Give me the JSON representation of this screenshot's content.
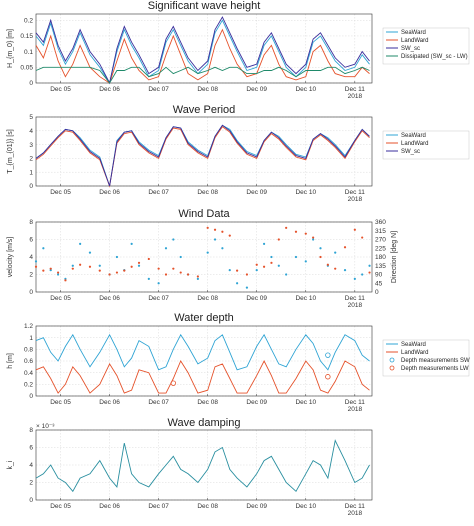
{
  "chart_data": [
    {
      "type": "line",
      "title": "Significant wave height",
      "ylabel": "H_{m_0} [m]",
      "ylim": [
        0,
        0.22
      ],
      "yticks": [
        0,
        0.05,
        0.1,
        0.15,
        0.2
      ],
      "xticks": [
        "Dec 05",
        "Dec 06",
        "Dec 07",
        "Dec 08",
        "Dec 09",
        "Dec 10",
        "Dec 11"
      ],
      "xyear": "2018",
      "legend": "right",
      "grid": true,
      "x": [
        4.5,
        4.65,
        4.8,
        4.95,
        5.1,
        5.25,
        5.4,
        5.6,
        5.8,
        6.0,
        6.15,
        6.3,
        6.45,
        6.6,
        6.8,
        7.0,
        7.15,
        7.3,
        7.45,
        7.6,
        7.8,
        8.0,
        8.15,
        8.3,
        8.45,
        8.6,
        8.8,
        9.0,
        9.15,
        9.3,
        9.45,
        9.6,
        9.8,
        10.0,
        10.15,
        10.3,
        10.45,
        10.6,
        10.8,
        11.0,
        11.15,
        11.3
      ],
      "series": [
        {
          "name": "SeaWard",
          "color": "#2fa4d4",
          "values": [
            0.15,
            0.12,
            0.19,
            0.11,
            0.06,
            0.1,
            0.16,
            0.09,
            0.05,
            0.0,
            0.1,
            0.17,
            0.12,
            0.08,
            0.02,
            0.04,
            0.13,
            0.17,
            0.12,
            0.07,
            0.03,
            0.06,
            0.16,
            0.2,
            0.15,
            0.1,
            0.04,
            0.05,
            0.12,
            0.15,
            0.1,
            0.05,
            0.02,
            0.05,
            0.13,
            0.15,
            0.11,
            0.07,
            0.04,
            0.05,
            0.09,
            0.06
          ]
        },
        {
          "name": "LandWard",
          "color": "#e5522b",
          "values": [
            0.12,
            0.08,
            0.15,
            0.07,
            0.02,
            0.06,
            0.12,
            0.05,
            0.02,
            0.0,
            0.07,
            0.14,
            0.08,
            0.04,
            0.01,
            0.02,
            0.09,
            0.15,
            0.09,
            0.03,
            0.01,
            0.03,
            0.12,
            0.17,
            0.11,
            0.06,
            0.02,
            0.03,
            0.09,
            0.12,
            0.06,
            0.02,
            0.01,
            0.02,
            0.1,
            0.12,
            0.07,
            0.03,
            0.02,
            0.02,
            0.05,
            0.03
          ]
        },
        {
          "name": "SW_sc",
          "color": "#3a2e9c",
          "values": [
            0.16,
            0.13,
            0.2,
            0.12,
            0.07,
            0.11,
            0.17,
            0.1,
            0.06,
            0.0,
            0.11,
            0.18,
            0.13,
            0.09,
            0.03,
            0.05,
            0.14,
            0.18,
            0.13,
            0.08,
            0.04,
            0.07,
            0.17,
            0.21,
            0.16,
            0.11,
            0.05,
            0.06,
            0.13,
            0.16,
            0.11,
            0.06,
            0.03,
            0.06,
            0.14,
            0.16,
            0.12,
            0.08,
            0.05,
            0.06,
            0.1,
            0.07
          ]
        },
        {
          "name": "Dissipated (SW_sc - LW)",
          "color": "#1f8a6a",
          "values": [
            0.04,
            0.05,
            0.05,
            0.05,
            0.05,
            0.05,
            0.05,
            0.05,
            0.04,
            0.0,
            0.04,
            0.04,
            0.05,
            0.05,
            0.02,
            0.03,
            0.05,
            0.03,
            0.04,
            0.05,
            0.03,
            0.04,
            0.05,
            0.04,
            0.05,
            0.05,
            0.03,
            0.03,
            0.04,
            0.04,
            0.05,
            0.04,
            0.02,
            0.04,
            0.04,
            0.04,
            0.05,
            0.05,
            0.03,
            0.04,
            0.05,
            0.04
          ]
        }
      ]
    },
    {
      "type": "line",
      "title": "Wave Period",
      "ylabel": "T_{m_{01}} [s]",
      "ylim": [
        0,
        5
      ],
      "yticks": [
        0,
        1,
        2,
        3,
        4,
        5
      ],
      "xticks": [
        "Dec 05",
        "Dec 06",
        "Dec 07",
        "Dec 08",
        "Dec 09",
        "Dec 10",
        "Dec 11"
      ],
      "xyear": "2018",
      "legend": "right",
      "grid": true,
      "x": [
        4.5,
        4.65,
        4.8,
        4.95,
        5.1,
        5.25,
        5.4,
        5.6,
        5.8,
        6.0,
        6.15,
        6.3,
        6.45,
        6.6,
        6.8,
        7.0,
        7.15,
        7.3,
        7.45,
        7.6,
        7.8,
        8.0,
        8.15,
        8.3,
        8.45,
        8.6,
        8.8,
        9.0,
        9.15,
        9.3,
        9.45,
        9.6,
        9.8,
        10.0,
        10.15,
        10.3,
        10.45,
        10.6,
        10.8,
        11.0,
        11.15,
        11.3
      ],
      "series": [
        {
          "name": "SeaWard",
          "color": "#2fa4d4",
          "values": [
            2.0,
            2.4,
            3.0,
            3.6,
            4.1,
            4.0,
            3.5,
            2.6,
            2.1,
            0.0,
            3.3,
            3.9,
            4.0,
            3.2,
            2.6,
            2.2,
            3.5,
            4.3,
            4.2,
            3.2,
            2.6,
            2.2,
            3.6,
            4.4,
            4.1,
            3.3,
            2.5,
            2.2,
            3.3,
            3.9,
            3.6,
            3.0,
            2.3,
            2.1,
            3.4,
            3.8,
            3.5,
            3.0,
            2.2,
            3.3,
            4.1,
            3.6
          ]
        },
        {
          "name": "LandWard",
          "color": "#e5522b",
          "values": [
            1.9,
            2.3,
            2.9,
            3.5,
            4.0,
            3.9,
            3.3,
            2.4,
            1.9,
            0.0,
            3.1,
            3.8,
            3.9,
            3.0,
            2.4,
            2.0,
            3.4,
            4.2,
            4.1,
            3.0,
            2.4,
            2.0,
            3.5,
            4.3,
            3.9,
            3.1,
            2.3,
            2.0,
            3.2,
            3.8,
            3.4,
            2.8,
            2.1,
            1.9,
            3.3,
            3.7,
            3.3,
            2.8,
            2.0,
            3.2,
            4.0,
            3.5
          ]
        },
        {
          "name": "SW_sc",
          "color": "#3a2e9c",
          "values": [
            2.0,
            2.4,
            3.0,
            3.6,
            4.1,
            4.0,
            3.4,
            2.5,
            2.0,
            0.0,
            3.2,
            3.9,
            4.0,
            3.1,
            2.5,
            2.1,
            3.5,
            4.3,
            4.2,
            3.1,
            2.5,
            2.1,
            3.6,
            4.4,
            4.0,
            3.2,
            2.4,
            2.1,
            3.3,
            3.9,
            3.5,
            2.9,
            2.2,
            2.0,
            3.4,
            3.8,
            3.4,
            2.9,
            2.1,
            3.3,
            4.1,
            3.6
          ]
        }
      ]
    },
    {
      "type": "scatter",
      "title": "Wind Data",
      "ylabel": "velocity [m/s]",
      "y2label": "Direction [deg N]",
      "ylim": [
        0,
        8
      ],
      "yticks": [
        0,
        2,
        4,
        6,
        8
      ],
      "y2lim": [
        0,
        360
      ],
      "y2ticks": [
        0,
        45,
        90,
        135,
        180,
        225,
        270,
        315,
        360
      ],
      "xticks": [
        "Dec 05",
        "Dec 06",
        "Dec 07",
        "Dec 08",
        "Dec 09",
        "Dec 10",
        "Dec 11"
      ],
      "xyear": "2018",
      "grid": true,
      "x": [
        4.5,
        4.65,
        4.8,
        4.95,
        5.1,
        5.25,
        5.4,
        5.6,
        5.8,
        6.0,
        6.15,
        6.3,
        6.45,
        6.6,
        6.8,
        7.0,
        7.15,
        7.3,
        7.45,
        7.6,
        7.8,
        8.0,
        8.15,
        8.3,
        8.45,
        8.6,
        8.8,
        9.0,
        9.15,
        9.3,
        9.45,
        9.6,
        9.8,
        10.0,
        10.15,
        10.3,
        10.45,
        10.6,
        10.8,
        11.0,
        11.15,
        11.3
      ],
      "series": [
        {
          "name": "velocity",
          "color": "#2fa4d4",
          "axis": "left",
          "values": [
            3.5,
            5.0,
            2.5,
            2.0,
            1.5,
            3.0,
            5.5,
            4.5,
            3.0,
            2.0,
            4.0,
            2.5,
            5.5,
            3.0,
            1.5,
            1.0,
            5.0,
            6.0,
            4.0,
            2.0,
            1.5,
            4.5,
            6.0,
            5.0,
            2.5,
            1.0,
            0.5,
            2.5,
            5.5,
            4.0,
            3.0,
            2.0,
            4.0,
            3.5,
            6.0,
            5.0,
            3.0,
            4.5,
            2.5,
            1.5,
            2.0,
            3.0
          ]
        },
        {
          "name": "direction",
          "color": "#e5522b",
          "axis": "right",
          "values": [
            130,
            110,
            120,
            100,
            60,
            120,
            140,
            130,
            110,
            90,
            100,
            110,
            130,
            150,
            170,
            120,
            90,
            120,
            100,
            90,
            80,
            330,
            320,
            310,
            290,
            110,
            90,
            140,
            130,
            150,
            270,
            330,
            310,
            300,
            280,
            180,
            140,
            120,
            230,
            320,
            280,
            100
          ]
        }
      ]
    },
    {
      "type": "line",
      "title": "Water depth",
      "ylabel": "h [m]",
      "ylim": [
        0,
        1.2
      ],
      "yticks": [
        0,
        0.2,
        0.4,
        0.6,
        0.8,
        1,
        1.2
      ],
      "xticks": [
        "Dec 05",
        "Dec 06",
        "Dec 07",
        "Dec 08",
        "Dec 09",
        "Dec 10",
        "Dec 11"
      ],
      "xyear": "2018",
      "legend": "right",
      "grid": true,
      "x": [
        4.5,
        4.65,
        4.8,
        4.95,
        5.1,
        5.25,
        5.4,
        5.6,
        5.8,
        6.0,
        6.15,
        6.3,
        6.45,
        6.6,
        6.8,
        7.0,
        7.15,
        7.3,
        7.45,
        7.6,
        7.8,
        8.0,
        8.15,
        8.3,
        8.45,
        8.6,
        8.8,
        9.0,
        9.15,
        9.3,
        9.45,
        9.6,
        9.8,
        10.0,
        10.15,
        10.3,
        10.45,
        10.6,
        10.8,
        11.0,
        11.15,
        11.3
      ],
      "series": [
        {
          "name": "SeaWard",
          "color": "#2fa4d4",
          "values": [
            0.95,
            1.0,
            0.75,
            0.6,
            0.85,
            1.05,
            0.8,
            0.5,
            0.75,
            1.05,
            0.8,
            0.5,
            0.65,
            0.95,
            0.85,
            0.45,
            0.5,
            0.8,
            1.05,
            0.85,
            0.55,
            0.65,
            0.95,
            1.05,
            0.75,
            0.45,
            0.5,
            0.85,
            1.05,
            0.8,
            0.55,
            0.5,
            0.8,
            1.05,
            0.9,
            0.6,
            0.45,
            0.75,
            1.05,
            0.95,
            0.7,
            0.6
          ]
        },
        {
          "name": "LandWard",
          "color": "#e5522b",
          "values": [
            0.45,
            0.5,
            0.3,
            0.05,
            0.2,
            0.5,
            0.35,
            0.05,
            0.2,
            0.55,
            0.35,
            0.05,
            0.1,
            0.45,
            0.4,
            0.05,
            0.05,
            0.3,
            0.6,
            0.4,
            0.05,
            0.1,
            0.5,
            0.55,
            0.3,
            0.05,
            0.05,
            0.35,
            0.6,
            0.35,
            0.05,
            0.05,
            0.3,
            0.6,
            0.45,
            0.1,
            0.05,
            0.25,
            0.6,
            0.5,
            0.2,
            0.1
          ]
        }
      ],
      "markers": [
        {
          "name": "Depth measurements SW",
          "color": "#2fa4d4",
          "points": [
            [
              10.45,
              0.7
            ]
          ]
        },
        {
          "name": "Depth measurements LW",
          "color": "#e5522b",
          "points": [
            [
              7.3,
              0.22
            ],
            [
              10.45,
              0.33
            ]
          ]
        }
      ]
    },
    {
      "type": "line",
      "title": "Wave damping",
      "ylabel": "k_i",
      "yexponent": "× 10⁻³",
      "ylim": [
        0,
        8
      ],
      "yticks": [
        0,
        2,
        4,
        6,
        8
      ],
      "xticks": [
        "Dec 05",
        "Dec 06",
        "Dec 07",
        "Dec 08",
        "Dec 09",
        "Dec 10",
        "Dec 11"
      ],
      "xyear": "2018",
      "grid": true,
      "x": [
        4.5,
        4.65,
        4.8,
        4.95,
        5.1,
        5.25,
        5.4,
        5.6,
        5.8,
        6.0,
        6.15,
        6.3,
        6.45,
        6.6,
        6.8,
        7.0,
        7.15,
        7.3,
        7.45,
        7.6,
        7.8,
        8.0,
        8.15,
        8.3,
        8.45,
        8.6,
        8.8,
        9.0,
        9.15,
        9.3,
        9.45,
        9.6,
        9.8,
        10.0,
        10.15,
        10.3,
        10.45,
        10.6,
        10.8,
        11.0,
        11.15,
        11.3
      ],
      "series": [
        {
          "name": "k_i",
          "color": "#2a8fa0",
          "values": [
            2.5,
            3.0,
            4.0,
            2.5,
            2.0,
            1.0,
            2.5,
            3.0,
            4.5,
            2.5,
            1.5,
            6.5,
            3.0,
            2.0,
            1.5,
            3.0,
            4.0,
            5.0,
            3.5,
            3.0,
            2.0,
            3.5,
            5.5,
            6.0,
            3.5,
            2.5,
            1.5,
            3.0,
            4.5,
            5.0,
            3.5,
            2.0,
            1.0,
            3.0,
            4.5,
            4.0,
            2.5,
            6.8,
            4.5,
            2.0,
            2.5,
            4.0
          ]
        }
      ]
    }
  ]
}
